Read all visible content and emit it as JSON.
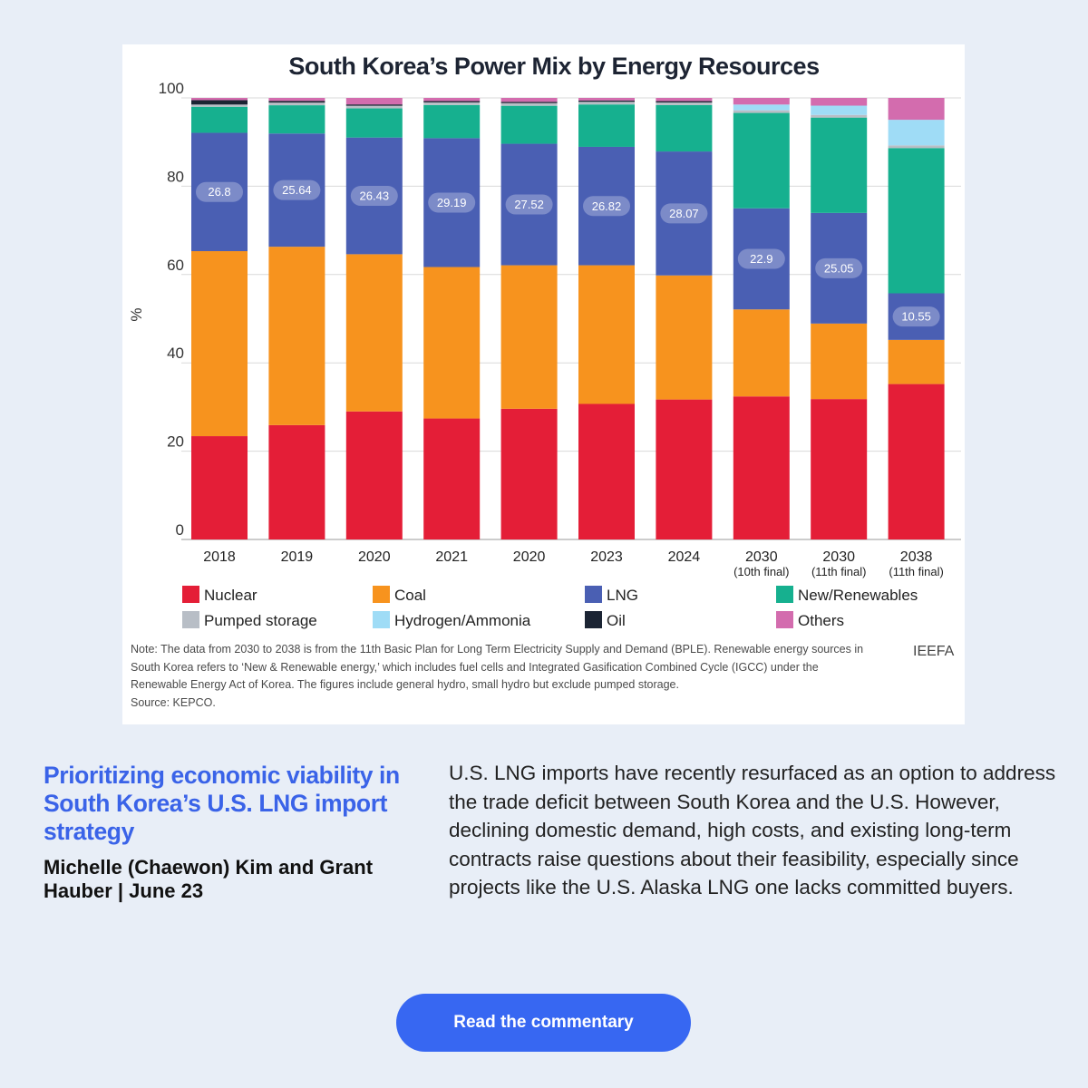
{
  "chart_data": {
    "type": "bar",
    "stacked": true,
    "title": "South Korea’s Power Mix by Energy Resources",
    "ylabel": "%",
    "ylim": [
      0,
      100
    ],
    "yticks": [
      "0",
      "20",
      "40",
      "60",
      "80",
      "100"
    ],
    "grid": true,
    "legend_position": "bottom",
    "categories": [
      {
        "label": "2018",
        "sub": ""
      },
      {
        "label": "2019",
        "sub": ""
      },
      {
        "label": "2020",
        "sub": ""
      },
      {
        "label": "2021",
        "sub": ""
      },
      {
        "label": "2020",
        "sub": ""
      },
      {
        "label": "2023",
        "sub": ""
      },
      {
        "label": "2024",
        "sub": ""
      },
      {
        "label": "2030",
        "sub": "(10th final)"
      },
      {
        "label": "2030",
        "sub": "(11th final)"
      },
      {
        "label": "2038",
        "sub": "(11th final)"
      }
    ],
    "series": [
      {
        "name": "Nuclear",
        "color": "#e41e37",
        "values": [
          23.4,
          25.9,
          29.0,
          27.4,
          29.6,
          30.7,
          31.7,
          32.4,
          31.8,
          35.2
        ]
      },
      {
        "name": "Coal",
        "color": "#f7931e",
        "values": [
          41.9,
          40.4,
          35.6,
          34.3,
          32.5,
          31.4,
          28.1,
          19.7,
          17.1,
          10.0
        ]
      },
      {
        "name": "LNG",
        "color": "#4a5fb3",
        "values": [
          26.8,
          25.64,
          26.43,
          29.19,
          27.52,
          26.82,
          28.07,
          22.9,
          25.05,
          10.55
        ]
      },
      {
        "name": "New/Renewables",
        "color": "#16b08f",
        "values": [
          5.9,
          6.4,
          6.6,
          7.5,
          8.6,
          9.6,
          10.5,
          21.6,
          21.6,
          32.9
        ]
      },
      {
        "name": "Pumped storage",
        "color": "#b8bec6",
        "values": [
          0.5,
          0.6,
          0.6,
          0.6,
          0.6,
          0.6,
          0.6,
          0.6,
          0.6,
          0.6
        ]
      },
      {
        "name": "Hydrogen/Ammonia",
        "color": "#9fdcf6",
        "values": [
          0,
          0,
          0,
          0,
          0,
          0,
          0,
          1.3,
          2.1,
          5.8
        ]
      },
      {
        "name": "Oil",
        "color": "#1b2433",
        "values": [
          1.0,
          0.4,
          0.3,
          0.3,
          0.3,
          0.3,
          0.3,
          0,
          0,
          0
        ]
      },
      {
        "name": "Others",
        "color": "#d36cae",
        "values": [
          0.5,
          0.66,
          1.47,
          0.71,
          0.88,
          0.58,
          0.73,
          1.5,
          1.75,
          4.95
        ]
      }
    ],
    "data_labels": {
      "series": "LNG",
      "values": [
        "26.8",
        "25.64",
        "26.43",
        "29.19",
        "27.52",
        "26.82",
        "28.07",
        "22.9",
        "25.05",
        "10.55"
      ]
    },
    "note": "Note: The data from 2030 to 2038 is from the 11th Basic Plan for Long Term Electricity Supply and Demand (BPLE). Renewable energy sources in South Korea refers to ‘New & Renewable energy,’ which includes fuel cells and Integrated Gasification Combined Cycle (IGCC) under the Renewable Energy Act of Korea. The figures include general hydro, small hydro but exclude pumped storage.",
    "source": "Source: KEPCO.",
    "brand": "IEEFA"
  },
  "article": {
    "headline": "Prioritizing economic viability in South Korea’s U.S. LNG import strategy",
    "byline": "Michelle (Chaewon) Kim and Grant Hauber | June 23",
    "body": "U.S. LNG imports have recently resurfaced as an option to address the trade deficit between South Korea and the U.S. However, declining domestic demand, high costs, and existing long-term contracts raise questions about their feasibility, especially since projects like the U.S. Alaska LNG one lacks committed buyers.",
    "cta_label": "Read the commentary"
  }
}
